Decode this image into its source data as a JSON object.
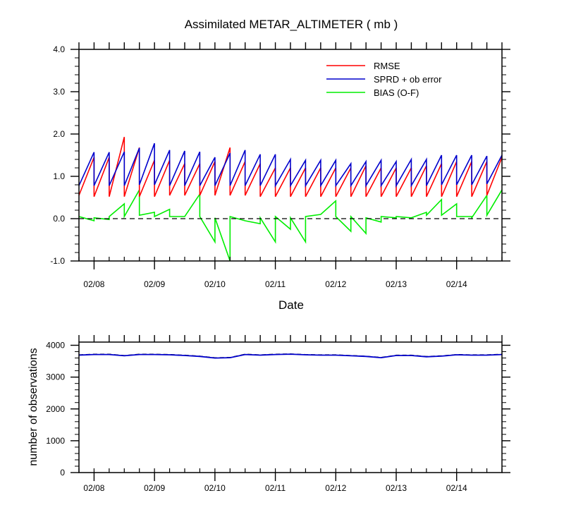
{
  "chart_data": [
    {
      "type": "line",
      "title": "Assimilated METAR_ALTIMETER ( mb )",
      "xlabel": "Date",
      "ylabel": "",
      "x_range": [
        "02/07 18:00",
        "02/14 18:00"
      ],
      "ylim": [
        -1.0,
        4.0
      ],
      "y_ticks": [
        "4.0",
        "3.0",
        "2.0",
        "1.0",
        "0.0",
        "-1.0"
      ],
      "x_ticks": [
        "02/08",
        "02/09",
        "02/10",
        "02/11",
        "02/12",
        "02/13",
        "02/14"
      ],
      "zero_line": "dashed",
      "grid": false,
      "legend_position": "top-right",
      "colors": {
        "rmse": "#ff0000",
        "spread": "#0000cc",
        "bias": "#00ee00"
      },
      "cycles": [
        {
          "start": "02/07 18:00",
          "end": "02/08 00:00",
          "rmse": [
            0.55,
            1.45
          ],
          "spread": [
            0.78,
            1.57
          ],
          "bias": [
            0.05,
            -0.05
          ]
        },
        {
          "start": "02/08 00:00",
          "end": "02/08 06:00",
          "rmse": [
            0.52,
            1.45
          ],
          "spread": [
            0.78,
            1.57
          ],
          "bias": [
            0.02,
            -0.02
          ]
        },
        {
          "start": "02/08 06:00",
          "end": "02/08 12:00",
          "rmse": [
            0.52,
            1.93
          ],
          "spread": [
            0.78,
            1.58
          ],
          "bias": [
            0.05,
            0.35
          ]
        },
        {
          "start": "02/08 12:00",
          "end": "02/08 18:00",
          "rmse": [
            0.52,
            1.68
          ],
          "spread": [
            0.78,
            1.67
          ],
          "bias": [
            0.05,
            0.68
          ]
        },
        {
          "start": "02/08 18:00",
          "end": "02/09 00:00",
          "rmse": [
            0.52,
            1.38
          ],
          "spread": [
            0.8,
            1.78
          ],
          "bias": [
            0.08,
            0.15
          ]
        },
        {
          "start": "02/09 00:00",
          "end": "02/09 06:00",
          "rmse": [
            0.52,
            1.38
          ],
          "spread": [
            0.8,
            1.62
          ],
          "bias": [
            0.05,
            0.22
          ]
        },
        {
          "start": "02/09 06:00",
          "end": "02/09 12:00",
          "rmse": [
            0.55,
            1.3
          ],
          "spread": [
            0.78,
            1.6
          ],
          "bias": [
            0.05,
            0.05
          ]
        },
        {
          "start": "02/09 12:00",
          "end": "02/09 18:00",
          "rmse": [
            0.55,
            1.3
          ],
          "spread": [
            0.78,
            1.58
          ],
          "bias": [
            0.05,
            0.58
          ]
        },
        {
          "start": "02/09 18:00",
          "end": "02/10 00:00",
          "rmse": [
            0.55,
            1.35
          ],
          "spread": [
            0.78,
            1.45
          ],
          "bias": [
            0.05,
            -0.55
          ]
        },
        {
          "start": "02/10 00:00",
          "end": "02/10 06:00",
          "rmse": [
            0.55,
            1.68
          ],
          "spread": [
            0.78,
            1.55
          ],
          "bias": [
            0.02,
            -1.0
          ]
        },
        {
          "start": "02/10 06:00",
          "end": "02/10 12:00",
          "rmse": [
            0.55,
            1.35
          ],
          "spread": [
            0.78,
            1.62
          ],
          "bias": [
            0.05,
            -0.05
          ]
        },
        {
          "start": "02/10 12:00",
          "end": "02/10 18:00",
          "rmse": [
            0.55,
            1.3
          ],
          "spread": [
            0.78,
            1.52
          ],
          "bias": [
            -0.05,
            -0.12
          ]
        },
        {
          "start": "02/10 18:00",
          "end": "02/11 00:00",
          "rmse": [
            0.52,
            1.2
          ],
          "spread": [
            0.78,
            1.52
          ],
          "bias": [
            0.02,
            -0.55
          ]
        },
        {
          "start": "02/11 00:00",
          "end": "02/11 06:00",
          "rmse": [
            0.52,
            1.2
          ],
          "spread": [
            0.78,
            1.4
          ],
          "bias": [
            0.05,
            -0.25
          ]
        },
        {
          "start": "02/11 06:00",
          "end": "02/11 12:00",
          "rmse": [
            0.52,
            1.2
          ],
          "spread": [
            0.78,
            1.38
          ],
          "bias": [
            0.02,
            -0.55
          ]
        },
        {
          "start": "02/11 12:00",
          "end": "02/11 18:00",
          "rmse": [
            0.52,
            1.2
          ],
          "spread": [
            0.78,
            1.38
          ],
          "bias": [
            0.05,
            0.1
          ]
        },
        {
          "start": "02/11 18:00",
          "end": "02/12 00:00",
          "rmse": [
            0.52,
            1.2
          ],
          "spread": [
            0.78,
            1.38
          ],
          "bias": [
            0.1,
            0.42
          ]
        },
        {
          "start": "02/12 00:00",
          "end": "02/12 06:00",
          "rmse": [
            0.52,
            1.2
          ],
          "spread": [
            0.78,
            1.3
          ],
          "bias": [
            0.05,
            -0.3
          ]
        },
        {
          "start": "02/12 06:00",
          "end": "02/12 12:00",
          "rmse": [
            0.52,
            1.25
          ],
          "spread": [
            0.78,
            1.35
          ],
          "bias": [
            0.05,
            -0.35
          ]
        },
        {
          "start": "02/12 12:00",
          "end": "02/12 18:00",
          "rmse": [
            0.52,
            1.2
          ],
          "spread": [
            0.78,
            1.38
          ],
          "bias": [
            0.02,
            -0.08
          ]
        },
        {
          "start": "02/12 18:00",
          "end": "02/13 00:00",
          "rmse": [
            0.52,
            1.2
          ],
          "spread": [
            0.78,
            1.35
          ],
          "bias": [
            0.05,
            0.02
          ]
        },
        {
          "start": "02/13 00:00",
          "end": "02/13 06:00",
          "rmse": [
            0.52,
            1.2
          ],
          "spread": [
            0.78,
            1.4
          ],
          "bias": [
            0.05,
            0.02
          ]
        },
        {
          "start": "02/13 06:00",
          "end": "02/13 12:00",
          "rmse": [
            0.52,
            1.25
          ],
          "spread": [
            0.78,
            1.4
          ],
          "bias": [
            0.02,
            0.15
          ]
        },
        {
          "start": "02/13 12:00",
          "end": "02/13 18:00",
          "rmse": [
            0.52,
            1.3
          ],
          "spread": [
            0.78,
            1.5
          ],
          "bias": [
            0.08,
            0.45
          ]
        },
        {
          "start": "02/13 18:00",
          "end": "02/14 00:00",
          "rmse": [
            0.52,
            1.35
          ],
          "spread": [
            0.8,
            1.5
          ],
          "bias": [
            0.08,
            0.35
          ]
        },
        {
          "start": "02/14 00:00",
          "end": "02/14 06:00",
          "rmse": [
            0.52,
            1.35
          ],
          "spread": [
            0.8,
            1.5
          ],
          "bias": [
            0.05,
            0.05
          ]
        },
        {
          "start": "02/14 06:00",
          "end": "02/14 12:00",
          "rmse": [
            0.52,
            1.35
          ],
          "spread": [
            0.8,
            1.48
          ],
          "bias": [
            0.02,
            0.55
          ]
        },
        {
          "start": "02/14 12:00",
          "end": "02/14 18:00",
          "rmse": [
            0.55,
            1.45
          ],
          "spread": [
            0.82,
            1.5
          ],
          "bias": [
            0.08,
            0.68
          ]
        }
      ],
      "legend": [
        {
          "key": "rmse",
          "label": "RMSE"
        },
        {
          "key": "spread",
          "label": "SPRD + ob error"
        },
        {
          "key": "bias",
          "label": "BIAS (O-F)"
        }
      ]
    },
    {
      "type": "line",
      "title": "",
      "xlabel": "",
      "ylabel": "number of observations",
      "x_range": [
        "02/07 18:00",
        "02/14 18:00"
      ],
      "ylim": [
        0,
        4100
      ],
      "y_ticks": [
        "4000",
        "3000",
        "2000",
        "1000",
        "0"
      ],
      "x_ticks": [
        "02/08",
        "02/09",
        "02/10",
        "02/11",
        "02/12",
        "02/13",
        "02/14"
      ],
      "colors": {
        "used": "#0000cc",
        "possible": "#000000"
      },
      "x": [
        "02/07 18:00",
        "02/08 00:00",
        "02/08 06:00",
        "02/08 12:00",
        "02/08 18:00",
        "02/09 00:00",
        "02/09 06:00",
        "02/09 12:00",
        "02/09 18:00",
        "02/10 00:00",
        "02/10 06:00",
        "02/10 12:00",
        "02/10 18:00",
        "02/11 00:00",
        "02/11 06:00",
        "02/11 12:00",
        "02/11 18:00",
        "02/12 00:00",
        "02/12 06:00",
        "02/12 12:00",
        "02/12 18:00",
        "02/13 00:00",
        "02/13 06:00",
        "02/13 12:00",
        "02/13 18:00",
        "02/14 00:00",
        "02/14 06:00",
        "02/14 12:00",
        "02/14 18:00"
      ],
      "series": [
        {
          "values": [
            3700,
            3720,
            3720,
            3680,
            3720,
            3720,
            3710,
            3690,
            3660,
            3610,
            3620,
            3720,
            3700,
            3720,
            3730,
            3710,
            3700,
            3700,
            3680,
            3660,
            3620,
            3690,
            3690,
            3650,
            3670,
            3710,
            3700,
            3700,
            3720
          ],
          "key": "possible",
          "style": "dashed"
        },
        {
          "values": [
            3690,
            3710,
            3710,
            3670,
            3710,
            3710,
            3700,
            3680,
            3650,
            3600,
            3610,
            3710,
            3690,
            3710,
            3720,
            3700,
            3690,
            3690,
            3670,
            3650,
            3610,
            3680,
            3680,
            3640,
            3660,
            3700,
            3690,
            3690,
            3710
          ],
          "key": "used",
          "style": "solid"
        }
      ]
    }
  ]
}
